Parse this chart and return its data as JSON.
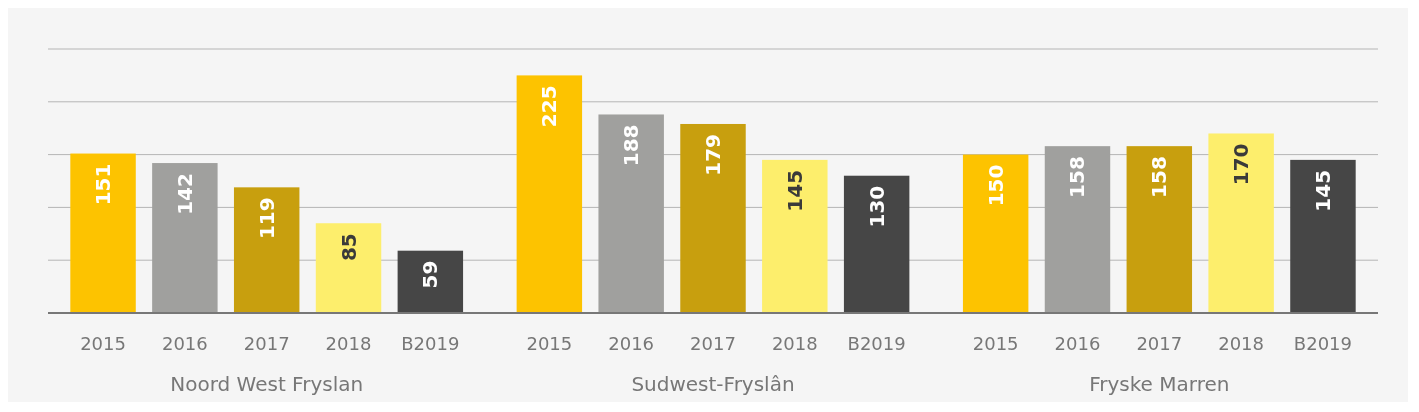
{
  "chart_data": {
    "type": "bar",
    "categories": [
      "Noord West Fryslan",
      "Sudwest-Fryslân",
      "Fryske Marren"
    ],
    "series": [
      {
        "name": "2015",
        "color": "#fdc300",
        "values": [
          151,
          225,
          150
        ]
      },
      {
        "name": "2016",
        "color": "#a0a09e",
        "values": [
          142,
          188,
          158
        ]
      },
      {
        "name": "2017",
        "color": "#c89f0e",
        "values": [
          119,
          179,
          158
        ]
      },
      {
        "name": "2018",
        "color": "#fdee6c",
        "values": [
          85,
          145,
          170
        ]
      },
      {
        "name": "B2019",
        "color": "#464646",
        "values": [
          59,
          130,
          145
        ]
      }
    ],
    "ylim": [
      0,
      250
    ],
    "yticks": [
      {
        "value": 0,
        "label": null
      },
      {
        "value": 50,
        "label": null
      },
      {
        "value": 100,
        "label": null
      },
      {
        "value": 150,
        "label": null
      },
      {
        "value": 200,
        "label": null
      },
      {
        "value": 250,
        "label": null
      }
    ],
    "tick_labels": "x",
    "grid": "y",
    "data_labels": true
  }
}
